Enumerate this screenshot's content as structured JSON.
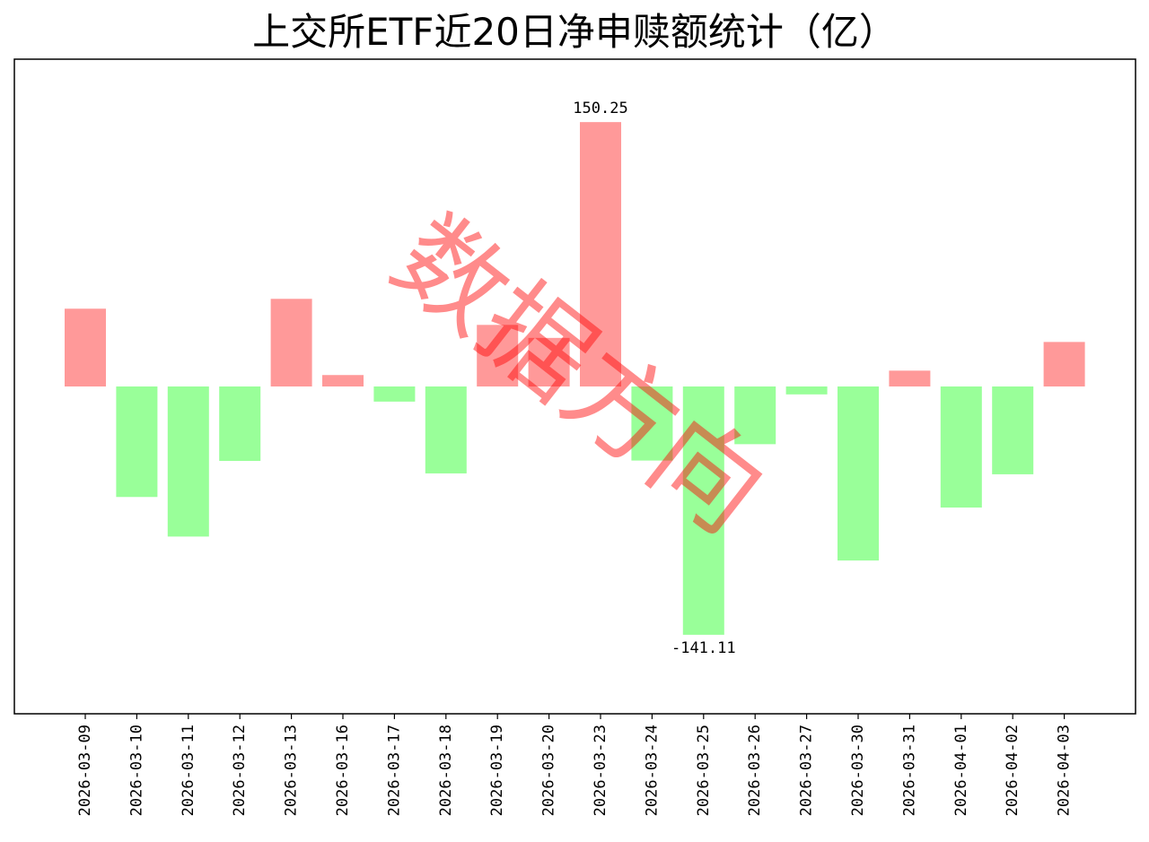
{
  "chart_data": {
    "type": "bar",
    "title": "上交所ETF近20日净申赎额统计（亿）",
    "categories": [
      "2026-03-09",
      "2026-03-10",
      "2026-03-11",
      "2026-03-12",
      "2026-03-13",
      "2026-03-16",
      "2026-03-17",
      "2026-03-18",
      "2026-03-19",
      "2026-03-20",
      "2026-03-23",
      "2026-03-24",
      "2026-03-25",
      "2026-03-26",
      "2026-03-27",
      "2026-03-30",
      "2026-03-31",
      "2026-04-01",
      "2026-04-02",
      "2026-04-03"
    ],
    "values": [
      44.2,
      -62.8,
      -85.3,
      -42.3,
      49.8,
      6.5,
      -8.6,
      -49.4,
      35.0,
      27.6,
      150.25,
      -42.1,
      -141.11,
      -32.8,
      -4.5,
      -98.9,
      9.0,
      -68.8,
      -49.9,
      25.3
    ],
    "data_labels": [
      {
        "category": "2026-03-23",
        "text": "150.25"
      },
      {
        "category": "2026-03-25",
        "text": "-141.11"
      }
    ],
    "ylim": [
      -186,
      186
    ],
    "xlabel": "",
    "ylabel": "",
    "grid": false,
    "colors": {
      "positive": "#ff9999",
      "negative": "#99ff99"
    },
    "watermark": "数据方向"
  }
}
